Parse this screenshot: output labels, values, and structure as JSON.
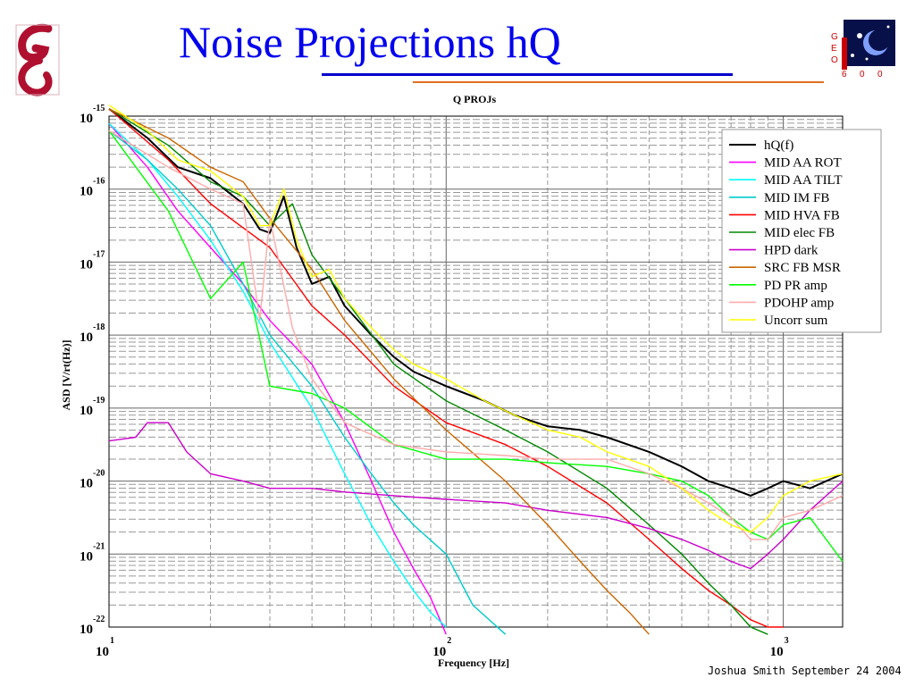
{
  "slide": {
    "title": "Noise Projections hQ",
    "footer": "Joshua Smith  September 24 2004",
    "logo_left": "glasgow-g-logo",
    "logo_right_text": [
      "G",
      "E",
      "O",
      "6",
      "0",
      "0"
    ],
    "title_color": "#0000ee"
  },
  "chart_data": {
    "type": "line",
    "title": "Q PROJs",
    "xlabel": "Frequency [Hz]",
    "ylabel": "ASD [V/rt(Hz)]",
    "xscale": "log",
    "yscale": "log",
    "xlim": [
      10,
      1500
    ],
    "ylim": [
      1e-22,
      1e-15
    ],
    "x_tick_labels": [
      {
        "base": "10",
        "exp": "1",
        "value": 10
      },
      {
        "base": "10",
        "exp": "2",
        "value": 100
      },
      {
        "base": "10",
        "exp": "3",
        "value": 1000
      }
    ],
    "y_tick_labels": [
      {
        "base": "10",
        "exp": "-15",
        "value": -15
      },
      {
        "base": "10",
        "exp": "-16",
        "value": -16
      },
      {
        "base": "10",
        "exp": "-17",
        "value": -17
      },
      {
        "base": "10",
        "exp": "-18",
        "value": -18
      },
      {
        "base": "10",
        "exp": "-19",
        "value": -19
      },
      {
        "base": "10",
        "exp": "-20",
        "value": -20
      },
      {
        "base": "10",
        "exp": "-21",
        "value": -21
      },
      {
        "base": "10",
        "exp": "-22",
        "value": -22
      }
    ],
    "grid": true,
    "legend_position": "top-right",
    "series": [
      {
        "name": "hQ(f)",
        "color": "#000000",
        "x": [
          10,
          13,
          16,
          20,
          25,
          28,
          30,
          33,
          36,
          40,
          45,
          50,
          60,
          70,
          80,
          100,
          130,
          160,
          200,
          250,
          300,
          400,
          500,
          600,
          700,
          800,
          900,
          1000,
          1200,
          1500
        ],
        "y": [
          -14.9,
          -15.3,
          -15.7,
          -15.85,
          -16.2,
          -16.55,
          -16.6,
          -16.1,
          -16.8,
          -17.3,
          -17.2,
          -17.6,
          -18.0,
          -18.3,
          -18.5,
          -18.7,
          -18.9,
          -19.1,
          -19.25,
          -19.3,
          -19.4,
          -19.6,
          -19.8,
          -20.0,
          -20.1,
          -20.2,
          -20.1,
          -20.0,
          -20.1,
          -19.9
        ]
      },
      {
        "name": "MID AA ROT",
        "color": "#ff00ff",
        "x": [
          10,
          13,
          16,
          20,
          25,
          30,
          40,
          50,
          60,
          70,
          80,
          90,
          100
        ],
        "y": [
          -15.1,
          -15.7,
          -16.3,
          -16.8,
          -17.3,
          -17.8,
          -18.4,
          -19.2,
          -20.0,
          -20.7,
          -21.2,
          -21.6,
          -22.1
        ]
      },
      {
        "name": "MID AA TILT",
        "color": "#00ffff",
        "x": [
          10,
          13,
          16,
          20,
          25,
          30,
          40,
          50,
          60,
          70,
          80,
          90,
          100
        ],
        "y": [
          -15.1,
          -15.6,
          -16.1,
          -16.7,
          -17.4,
          -18.1,
          -19.0,
          -19.9,
          -20.6,
          -21.1,
          -21.5,
          -21.8,
          -22.0
        ]
      },
      {
        "name": "MID IM FB",
        "color": "#00cccc",
        "x": [
          10,
          13,
          16,
          20,
          25,
          30,
          40,
          50,
          60,
          70,
          80,
          100,
          120,
          150
        ],
        "y": [
          -15.2,
          -15.6,
          -16.0,
          -16.5,
          -17.3,
          -18.0,
          -18.7,
          -19.4,
          -19.9,
          -20.3,
          -20.6,
          -21.0,
          -21.7,
          -22.1
        ]
      },
      {
        "name": "MID HVA FB",
        "color": "#ff0000",
        "x": [
          10,
          15,
          20,
          30,
          40,
          50,
          70,
          100,
          150,
          200,
          300,
          400,
          500,
          600,
          700,
          800,
          900,
          1000
        ],
        "y": [
          -14.9,
          -15.6,
          -16.2,
          -16.8,
          -17.6,
          -18.0,
          -18.7,
          -19.2,
          -19.5,
          -19.8,
          -20.3,
          -20.8,
          -21.2,
          -21.5,
          -21.7,
          -21.9,
          -22.0,
          -22.0
        ]
      },
      {
        "name": "MID elec FB",
        "color": "#008800",
        "x": [
          10,
          15,
          20,
          25,
          30,
          35,
          40,
          50,
          70,
          100,
          150,
          200,
          300,
          400,
          500,
          600,
          700,
          800,
          900
        ],
        "y": [
          -14.9,
          -15.4,
          -15.9,
          -16.1,
          -16.5,
          -16.2,
          -16.9,
          -17.5,
          -18.4,
          -18.9,
          -19.3,
          -19.6,
          -20.1,
          -20.6,
          -21.0,
          -21.4,
          -21.7,
          -22.0,
          -22.1
        ]
      },
      {
        "name": "HPD dark",
        "color": "#cc00cc",
        "x": [
          10,
          12,
          13,
          15,
          17,
          20,
          25,
          30,
          40,
          50,
          70,
          100,
          150,
          200,
          300,
          400,
          500,
          600,
          700,
          800,
          900,
          1000,
          1200,
          1500
        ],
        "y": [
          -19.45,
          -19.4,
          -19.2,
          -19.2,
          -19.6,
          -19.9,
          -20.0,
          -20.1,
          -20.1,
          -20.15,
          -20.2,
          -20.25,
          -20.3,
          -20.4,
          -20.5,
          -20.65,
          -20.8,
          -20.95,
          -21.1,
          -21.2,
          -21.0,
          -20.8,
          -20.4,
          -20.0
        ]
      },
      {
        "name": "SRC FB MSR",
        "color": "#cc6600",
        "x": [
          10,
          15,
          20,
          25,
          30,
          40,
          50,
          70,
          100,
          150,
          200,
          250,
          300,
          350,
          400
        ],
        "y": [
          -14.9,
          -15.3,
          -15.7,
          -15.9,
          -16.4,
          -17.1,
          -17.8,
          -18.6,
          -19.3,
          -20.0,
          -20.6,
          -21.1,
          -21.5,
          -21.8,
          -22.1
        ]
      },
      {
        "name": "PD PR amp",
        "color": "#00ff00",
        "x": [
          10,
          15,
          20,
          25,
          30,
          40,
          50,
          70,
          100,
          150,
          200,
          300,
          400,
          500,
          600,
          700,
          800,
          900,
          1000,
          1200,
          1500
        ],
        "y": [
          -15.2,
          -16.3,
          -17.5,
          -17.0,
          -18.7,
          -18.8,
          -19.0,
          -19.5,
          -19.7,
          -19.7,
          -19.75,
          -19.8,
          -19.9,
          -20.0,
          -20.2,
          -20.5,
          -20.7,
          -20.8,
          -20.6,
          -20.5,
          -21.1
        ]
      },
      {
        "name": "PDOHP amp",
        "color": "#ffaaaa",
        "x": [
          10,
          15,
          20,
          25,
          28,
          30,
          35,
          40,
          50,
          70,
          100,
          150,
          200,
          300,
          400,
          500,
          600,
          700,
          800,
          900,
          1000,
          1200,
          1500
        ],
        "y": [
          -15.2,
          -15.7,
          -16.0,
          -16.2,
          -17.8,
          -16.4,
          -17.9,
          -18.6,
          -19.2,
          -19.5,
          -19.6,
          -19.65,
          -19.7,
          -19.7,
          -19.9,
          -20.1,
          -20.3,
          -20.5,
          -20.8,
          -20.8,
          -20.5,
          -20.4,
          -20.2
        ]
      },
      {
        "name": "Uncorr sum",
        "color": "#ffff00",
        "x": [
          10,
          13,
          16,
          20,
          25,
          28,
          30,
          33,
          36,
          40,
          45,
          50,
          60,
          70,
          80,
          100,
          130,
          160,
          200,
          250,
          300,
          400,
          500,
          600,
          700,
          800,
          900,
          1000,
          1200,
          1500
        ],
        "y": [
          -14.85,
          -15.2,
          -15.6,
          -15.75,
          -16.1,
          -16.5,
          -16.5,
          -16.0,
          -16.7,
          -17.2,
          -17.1,
          -17.5,
          -17.9,
          -18.2,
          -18.4,
          -18.6,
          -18.9,
          -19.1,
          -19.3,
          -19.4,
          -19.6,
          -19.8,
          -20.1,
          -20.4,
          -20.6,
          -20.7,
          -20.5,
          -20.2,
          -20.0,
          -19.9
        ]
      }
    ]
  }
}
